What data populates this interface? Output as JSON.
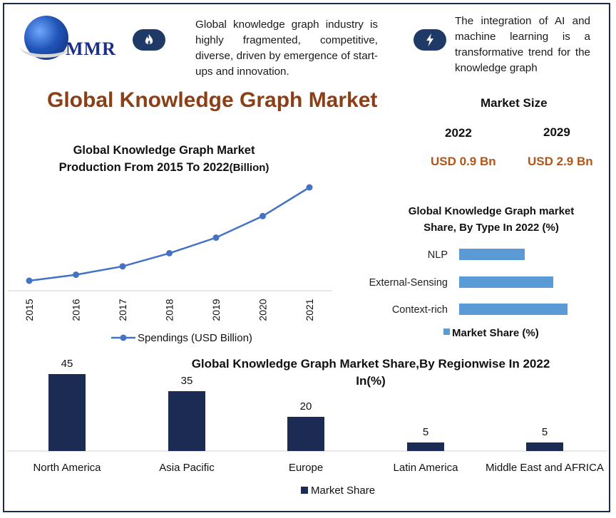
{
  "brand": {
    "logo_text": "MMR"
  },
  "header": {
    "blurb_left": "Global knowledge graph industry is highly fragmented, competitive, diverse, driven by emergence of start-ups and innovation.",
    "blurb_right": "The integration of AI and machine learning is a transformative trend for the knowledge graph",
    "icon_left": "flame-icon",
    "icon_right": "lightning-icon"
  },
  "title": "Global Knowledge Graph Market",
  "market_size": {
    "heading": "Market Size",
    "years": [
      "2022",
      "2029"
    ],
    "values": [
      "USD 0.9 Bn",
      "USD 2.9 Bn"
    ],
    "value_color": "#b35516"
  },
  "chart_data": [
    {
      "type": "line",
      "title": "Global Knowledge Graph Market Production From 2015 To 2022",
      "title_suffix": "(Billion)",
      "x": [
        "2015",
        "2016",
        "2017",
        "2018",
        "2019",
        "2020",
        "2021"
      ],
      "series": [
        {
          "name": "Spendings (USD Billion)",
          "values": [
            0.6,
            0.85,
            1.2,
            1.75,
            2.4,
            3.3,
            4.5
          ]
        }
      ],
      "legend_position": "bottom",
      "grid": false,
      "color": "#4472c4"
    },
    {
      "type": "bar",
      "orientation": "horizontal",
      "title": "Global Knowledge Graph market Share, By Type In 2022 (%)",
      "categories": [
        "NLP",
        "External-Sensing",
        "Context-rich"
      ],
      "series": [
        {
          "name": "Market Share (%)",
          "values": [
            23,
            33,
            38
          ]
        }
      ],
      "legend_position": "bottom",
      "color": "#5b9bd5"
    },
    {
      "type": "bar",
      "title": "Global Knowledge Graph Market Share,By Regionwise In 2022 In(%)",
      "categories": [
        "North America",
        "Asia Pacific",
        "Europe",
        "Latin America",
        "Middle East and AFRICA"
      ],
      "series": [
        {
          "name": "Market Share",
          "values": [
            45,
            35,
            20,
            5,
            5
          ]
        }
      ],
      "data_labels": [
        "45",
        "35",
        "20",
        "5",
        "5"
      ],
      "legend_position": "bottom",
      "color": "#1c2b54"
    }
  ]
}
